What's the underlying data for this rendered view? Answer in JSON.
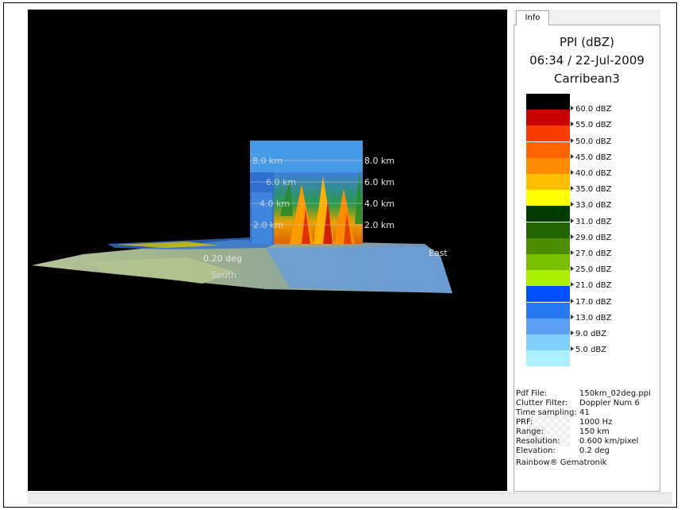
{
  "panel": {
    "tab_label": "Info",
    "title_line1": "PPI (dBZ)",
    "title_line2": "06:34 / 22-Jul-2009",
    "title_line3": "Carribean3"
  },
  "legend": [
    {
      "label": "",
      "color": "#000000"
    },
    {
      "label": "60.0 dBZ",
      "color": "#c80000"
    },
    {
      "label": "55.0 dBZ",
      "color": "#fa3c00"
    },
    {
      "label": "50.0 dBZ",
      "color": "#ff6400"
    },
    {
      "label": "45.0 dBZ",
      "color": "#ff8c00"
    },
    {
      "label": "40.0 dBZ",
      "color": "#ffbe00"
    },
    {
      "label": "35.0 dBZ",
      "color": "#ffff00"
    },
    {
      "label": "33.0 dBZ",
      "color": "#003c00"
    },
    {
      "label": "31.0 dBZ",
      "color": "#226400"
    },
    {
      "label": "29.0 dBZ",
      "color": "#4b8c00"
    },
    {
      "label": "27.0 dBZ",
      "color": "#7abe00"
    },
    {
      "label": "25.0 dBZ",
      "color": "#aaf000"
    },
    {
      "label": "21.0 dBZ",
      "color": "#0050ff"
    },
    {
      "label": "17.0 dBZ",
      "color": "#2878f0"
    },
    {
      "label": "13.0 dBZ",
      "color": "#5aa0f5"
    },
    {
      "label": "9.0 dBZ",
      "color": "#80d0ff"
    },
    {
      "label": "5.0 dBZ",
      "color": "#aaf0ff"
    }
  ],
  "info": [
    {
      "key": "Pdf File:",
      "value": "150km_02deg.ppi"
    },
    {
      "key": "Clutter Filter:",
      "value": "Doppler Num 6"
    },
    {
      "key": "Time sampling:",
      "value": "41"
    },
    {
      "key": "PRF:",
      "value": "1000 Hz"
    },
    {
      "key": "Range:",
      "value": "150 km"
    },
    {
      "key": "Resolution:",
      "value": "0.600 km/pixel"
    },
    {
      "key": "Elevation:",
      "value": "0.2 deg"
    }
  ],
  "credit": "Rainbow® Gematronik",
  "scene": {
    "height_labels_right": [
      "8.0 km",
      "6.0 km",
      "4.0 km",
      "2.0 km"
    ],
    "height_labels_left": [
      "8.0 km",
      "6.0 km",
      "4.0 km",
      "2.0 km"
    ],
    "elevation_label": "0.20 deg",
    "direction_south": "South",
    "direction_east": "East"
  }
}
